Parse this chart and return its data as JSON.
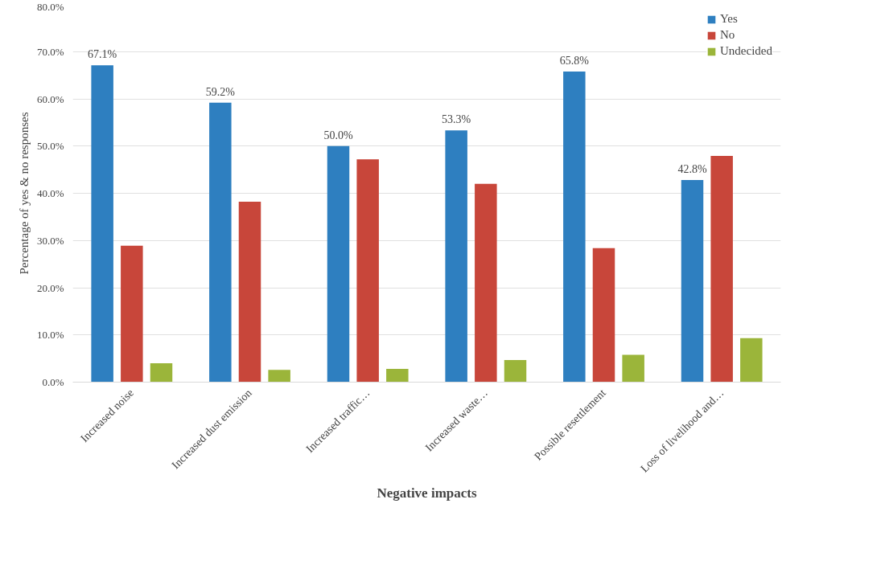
{
  "chart_data": {
    "type": "bar",
    "xlabel": "Negative impacts",
    "ylabel": "Percentage of yes & no responses",
    "categories": [
      "Increased noise",
      "Increased dust emission",
      "Increased traffic…",
      "Increased waste…",
      "Possible resettlement",
      "Loss of livelihood and…"
    ],
    "series": [
      {
        "name": "Yes",
        "color": "#2e7fc0",
        "values": [
          67.1,
          59.2,
          50.0,
          53.3,
          65.8,
          42.8
        ],
        "value_labels": [
          "67.1%",
          "59.2%",
          "50.0%",
          "53.3%",
          "65.8%",
          "42.8%"
        ]
      },
      {
        "name": "No",
        "color": "#c8463a",
        "values": [
          28.9,
          38.2,
          47.2,
          42.0,
          28.4,
          47.9
        ]
      },
      {
        "name": "Undecided",
        "color": "#9bb53a",
        "values": [
          4.0,
          2.6,
          2.8,
          4.7,
          5.8,
          9.3
        ]
      }
    ],
    "ylim": [
      0,
      80
    ],
    "yticks": [
      {
        "value": 0,
        "label": "0.0%"
      },
      {
        "value": 10,
        "label": "10.0%"
      },
      {
        "value": 20,
        "label": "20.0%"
      },
      {
        "value": 30,
        "label": "30.0%"
      },
      {
        "value": 40,
        "label": "40.0%"
      },
      {
        "value": 50,
        "label": "50.0%"
      },
      {
        "value": 60,
        "label": "60.0%"
      },
      {
        "value": 70,
        "label": "70.0%"
      },
      {
        "value": 80,
        "label": "80.0%"
      }
    ],
    "grid": "y",
    "legend": "top right"
  }
}
